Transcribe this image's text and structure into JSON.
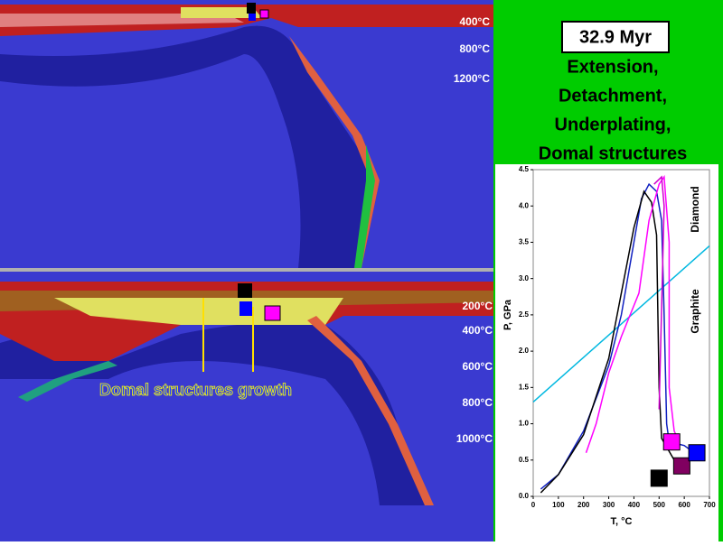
{
  "slide": {
    "time_label": "32.9 Myr",
    "heading": [
      "Extension,",
      "Detachment,",
      "Underplating,",
      "Domal structures"
    ],
    "top_temps": [
      "400°C",
      "800°C",
      "1200°C"
    ],
    "bottom_temps": [
      "200°C",
      "400°C",
      "600°C",
      "800°C",
      "1000°C"
    ],
    "annotation": "Domal structures growth"
  },
  "chart_data": {
    "type": "line",
    "xlabel": "T, °C",
    "ylabel": "P, GPa",
    "xlim": [
      0,
      700
    ],
    "xticks": [
      0,
      100,
      200,
      300,
      400,
      500,
      600,
      700
    ],
    "ylim": [
      0,
      4.5
    ],
    "yticks": [
      {
        "value": 0,
        "label": "0.0"
      },
      0.5,
      {
        "value": 1,
        "label": "1.0"
      },
      1.5,
      {
        "value": 2,
        "label": "2.0"
      },
      2.5,
      {
        "value": 3,
        "label": "3.0"
      },
      3.5,
      {
        "value": 4,
        "label": "4.0"
      },
      4.5
    ],
    "series": [
      {
        "color": "#00b8e0",
        "x": [
          0,
          700
        ],
        "values": [
          1.3,
          3.45
        ]
      },
      {
        "color": "#1020c0",
        "x": [
          30,
          100,
          200,
          300,
          350,
          400,
          430,
          460,
          490,
          510,
          520,
          530,
          540,
          600,
          640
        ],
        "values": [
          0.1,
          0.3,
          0.9,
          1.8,
          2.5,
          3.5,
          4.1,
          4.3,
          4.2,
          3.8,
          2.5,
          1.0,
          0.75,
          0.7,
          0.6
        ]
      },
      {
        "color": "#000000",
        "x": [
          30,
          100,
          200,
          300,
          400,
          440,
          470,
          490,
          500,
          510,
          560
        ],
        "values": [
          0.05,
          0.3,
          0.85,
          1.9,
          3.7,
          4.2,
          4.05,
          3.6,
          1.5,
          0.8,
          0.5
        ]
      },
      {
        "color": "#ff00ff",
        "x": [
          210,
          250,
          300,
          350,
          420,
          460,
          500,
          520,
          540,
          540,
          560,
          580
        ],
        "values": [
          0.6,
          1.0,
          1.7,
          2.2,
          2.8,
          3.8,
          4.3,
          4.4,
          3.5,
          1.5,
          0.9,
          0.75
        ]
      },
      {
        "color": "#d000d0",
        "x": [
          480,
          510,
          520,
          500
        ],
        "values": [
          4.3,
          4.4,
          4.0,
          1.2
        ]
      }
    ],
    "markers": [
      {
        "x": 500,
        "y": 0.25,
        "color": "#000000"
      },
      {
        "x": 590,
        "y": 0.42,
        "color": "#800060"
      },
      {
        "x": 550,
        "y": 0.75,
        "color": "#ff00ff"
      },
      {
        "x": 650,
        "y": 0.6,
        "color": "#0000ff"
      }
    ],
    "annotations": [
      "Diamond",
      "Graphite"
    ]
  }
}
